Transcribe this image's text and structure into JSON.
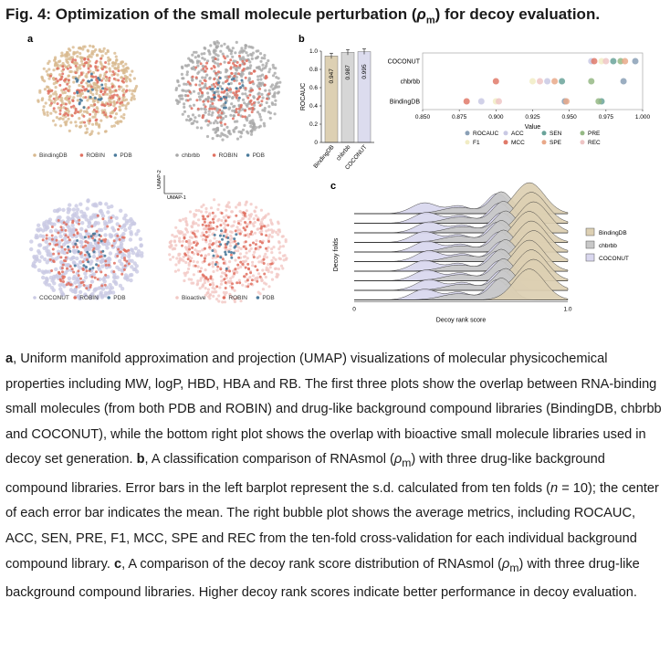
{
  "figure": {
    "title_prefix": "Fig. 4: Optimization of the small molecule perturbation (",
    "title_rho": "ρ",
    "title_sub": "m",
    "title_suffix": ") for decoy evaluation."
  },
  "panel_labels": {
    "a": "a",
    "b": "b",
    "c": "c"
  },
  "umap": {
    "axis_y": "UMAP-2",
    "axis_x": "UMAP-1",
    "plots": [
      {
        "legend": [
          "BindingDB",
          "ROBIN",
          "PDB"
        ],
        "colors": [
          "#d8b98f",
          "#e07060",
          "#4a7a9b"
        ]
      },
      {
        "legend": [
          "chbrbb",
          "ROBIN",
          "PDB"
        ],
        "colors": [
          "#a8a8a8",
          "#e07060",
          "#4a7a9b"
        ]
      },
      {
        "legend": [
          "COCONUT",
          "ROBIN",
          "PDB"
        ],
        "colors": [
          "#c9c9e4",
          "#e07060",
          "#4a7a9b"
        ]
      },
      {
        "legend": [
          "Bioactive",
          "ROBIN",
          "PDB"
        ],
        "colors": [
          "#f2c8c4",
          "#e07060",
          "#4a7a9b"
        ]
      }
    ]
  },
  "chart_data": [
    {
      "type": "bar",
      "categories": [
        "BindingDB",
        "chbrbb",
        "COCONUT"
      ],
      "values": [
        0.947,
        0.987,
        0.995
      ],
      "value_labels": [
        "0.947",
        "0.987",
        "0.995"
      ],
      "ylabel": "ROCAUC",
      "ylim": [
        0,
        1.0
      ],
      "yticks": [
        "0",
        "0.2",
        "0.4",
        "0.6",
        "0.8",
        "1.0"
      ],
      "colors": [
        "#ddd0b3",
        "#d6d6d6",
        "#dcdcee"
      ]
    },
    {
      "type": "scatter",
      "xlabel": "Value",
      "xlim": [
        0.85,
        1.0
      ],
      "xticks": [
        "0.850",
        "0.875",
        "0.900",
        "0.925",
        "0.950",
        "0.975",
        "1.000"
      ],
      "categories": [
        "COCONUT",
        "chbrbb",
        "BindingDB"
      ],
      "legend": [
        {
          "name": "ROCAUC",
          "color": "#8aa0b6"
        },
        {
          "name": "ACC",
          "color": "#c9c9e4"
        },
        {
          "name": "SEN",
          "color": "#6aa39a"
        },
        {
          "name": "PRE",
          "color": "#95b985"
        },
        {
          "name": "F1",
          "color": "#f1ecc4"
        },
        {
          "name": "MCC",
          "color": "#e07a6a"
        },
        {
          "name": "SPE",
          "color": "#e9a98a"
        },
        {
          "name": "REC",
          "color": "#eec5c5"
        }
      ],
      "series": [
        {
          "name": "ROCAUC",
          "values": [
            0.995,
            0.987,
            0.947
          ]
        },
        {
          "name": "ACC",
          "values": [
            0.965,
            0.935,
            0.89
          ]
        },
        {
          "name": "SEN",
          "values": [
            0.98,
            0.945,
            0.972
          ]
        },
        {
          "name": "PRE",
          "values": [
            0.985,
            0.965,
            0.97
          ]
        },
        {
          "name": "F1",
          "values": [
            0.972,
            0.925,
            0.9
          ]
        },
        {
          "name": "MCC",
          "values": [
            0.967,
            0.9,
            0.88
          ]
        },
        {
          "name": "SPE",
          "values": [
            0.988,
            0.94,
            0.948
          ]
        },
        {
          "name": "REC",
          "values": [
            0.975,
            0.93,
            0.902
          ]
        }
      ]
    },
    {
      "type": "area",
      "xlabel": "Decoy rank score",
      "ylabel": "Decoy folds",
      "xticks": [
        "0",
        "1.0"
      ],
      "legend": [
        {
          "name": "BindingDB",
          "color": "#ddd0b3"
        },
        {
          "name": "chbrbb",
          "color": "#c8c8c8"
        },
        {
          "name": "COCONUT",
          "color": "#d9d7ee"
        }
      ],
      "folds": 10
    }
  ],
  "caption": {
    "a_label": "a",
    "a_text": ", Uniform manifold approximation and projection (UMAP) visualizations of molecular physicochemical properties including MW, logP, HBD, HBA and RB. The first three plots show the overlap between RNA-binding small molecules (from both PDB and ROBIN) and drug-like background compound libraries (BindingDB, chbrbb and COCONUT), while the bottom right plot shows the overlap with bioactive small molecule libraries used in decoy set generation.",
    "b_label": "b",
    "b_text1": ", A classification comparison of RNAsmol (",
    "b_text2": ") with three drug-like background compound libraries. Error bars in the left barplot represent the s.d. calculated from ten folds (",
    "n_italic": "n",
    "b_text3": " = 10); the center of each error bar indicates the mean. The right bubble plot shows the average metrics, including ROCAUC, ACC, SEN, PRE, F1, MCC, SPE and REC from the ten-fold cross-validation for each individual background compound library.",
    "c_label": "c",
    "c_text1": ", A comparison of the decoy rank score distribution of RNAsmol (",
    "c_text2": ") with three drug-like background compound libraries. Higher decoy rank scores indicate better performance in decoy evaluation.",
    "rho": "ρ",
    "sub": "m"
  }
}
